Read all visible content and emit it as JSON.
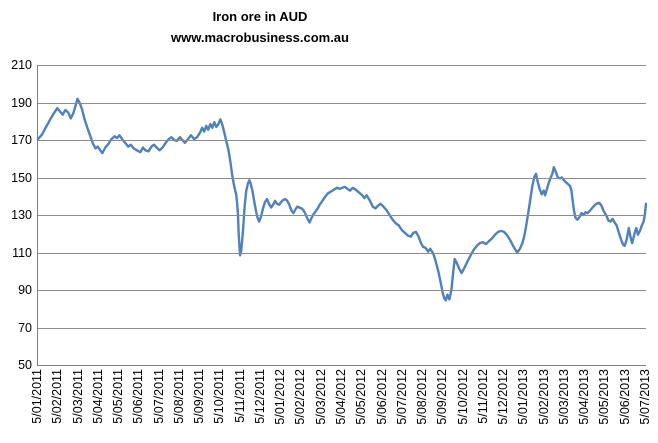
{
  "header": {
    "title": "Iron ore in AUD",
    "subtitle": "www.macrobusiness.com.au"
  },
  "colors": {
    "line": "#4F81BD",
    "gridline": "#8C8C8C",
    "axis": "#808080",
    "text": "#000000",
    "background": "#FFFFFF"
  },
  "chart_data": {
    "type": "line",
    "title": "Iron ore in AUD",
    "subtitle": "www.macrobusiness.com.au",
    "legend": "none",
    "grid": "horizontal",
    "ylim": [
      50,
      210
    ],
    "y_ticks": [
      210,
      190,
      170,
      150,
      130,
      110,
      90,
      70,
      50
    ],
    "x_axis_unit": "months since first tick (5/01/2011), monthly ticks",
    "x_tick_labels": [
      "5/01/2011",
      "5/02/2011",
      "5/03/2011",
      "5/04/2011",
      "5/05/2011",
      "5/06/2011",
      "5/07/2011",
      "5/08/2011",
      "5/09/2011",
      "5/10/2011",
      "5/11/2011",
      "5/12/2011",
      "5/01/2012",
      "5/02/2012",
      "5/03/2012",
      "5/04/2012",
      "5/05/2012",
      "5/06/2012",
      "5/07/2012",
      "5/08/2012",
      "5/09/2012",
      "5/10/2012",
      "5/11/2012",
      "5/12/2012",
      "5/01/2013",
      "5/02/2013",
      "5/03/2013",
      "5/04/2013",
      "5/05/2013",
      "5/06/2013",
      "5/07/2013"
    ],
    "series": [
      {
        "name": "Iron ore in AUD",
        "color": "#4F81BD",
        "points": [
          [
            0,
            170.5
          ],
          [
            0.2,
            173
          ],
          [
            0.4,
            177
          ],
          [
            0.6,
            181
          ],
          [
            0.8,
            184.5
          ],
          [
            0.95,
            187
          ],
          [
            1.1,
            185
          ],
          [
            1.22,
            183.5
          ],
          [
            1.35,
            186
          ],
          [
            1.5,
            184.5
          ],
          [
            1.62,
            181.5
          ],
          [
            1.75,
            184.5
          ],
          [
            1.87,
            189
          ],
          [
            1.95,
            192
          ],
          [
            2.05,
            190
          ],
          [
            2.17,
            186.5
          ],
          [
            2.3,
            181
          ],
          [
            2.45,
            176
          ],
          [
            2.6,
            171.5
          ],
          [
            2.72,
            168
          ],
          [
            2.83,
            165.5
          ],
          [
            2.95,
            166.5
          ],
          [
            3.07,
            164.5
          ],
          [
            3.18,
            163
          ],
          [
            3.32,
            166
          ],
          [
            3.48,
            168
          ],
          [
            3.62,
            170.5
          ],
          [
            3.78,
            172
          ],
          [
            3.9,
            171
          ],
          [
            4.02,
            172.5
          ],
          [
            4.15,
            170.5
          ],
          [
            4.3,
            168.5
          ],
          [
            4.45,
            166.5
          ],
          [
            4.58,
            167.5
          ],
          [
            4.72,
            165.5
          ],
          [
            4.88,
            164.5
          ],
          [
            5.05,
            163.5
          ],
          [
            5.18,
            166
          ],
          [
            5.3,
            164.5
          ],
          [
            5.45,
            164
          ],
          [
            5.6,
            166.5
          ],
          [
            5.72,
            167.5
          ],
          [
            5.85,
            166
          ],
          [
            6,
            164.5
          ],
          [
            6.15,
            166
          ],
          [
            6.3,
            168.5
          ],
          [
            6.45,
            170.5
          ],
          [
            6.58,
            171.5
          ],
          [
            6.72,
            170
          ],
          [
            6.85,
            169.5
          ],
          [
            7,
            171.5
          ],
          [
            7.12,
            170
          ],
          [
            7.25,
            168.5
          ],
          [
            7.4,
            170.5
          ],
          [
            7.55,
            172.5
          ],
          [
            7.7,
            170.5
          ],
          [
            7.85,
            171.5
          ],
          [
            8,
            174
          ],
          [
            8.1,
            176.5
          ],
          [
            8.2,
            174.5
          ],
          [
            8.3,
            177.5
          ],
          [
            8.4,
            175.5
          ],
          [
            8.5,
            178.5
          ],
          [
            8.6,
            176.5
          ],
          [
            8.7,
            179.5
          ],
          [
            8.8,
            177
          ],
          [
            8.9,
            178.5
          ],
          [
            9,
            181
          ],
          [
            9.1,
            178
          ],
          [
            9.2,
            173.5
          ],
          [
            9.3,
            169
          ],
          [
            9.4,
            164.5
          ],
          [
            9.5,
            158
          ],
          [
            9.57,
            152
          ],
          [
            9.65,
            147
          ],
          [
            9.72,
            143.5
          ],
          [
            9.78,
            141
          ],
          [
            9.83,
            136
          ],
          [
            9.87,
            130
          ],
          [
            9.9,
            121
          ],
          [
            9.94,
            113
          ],
          [
            9.97,
            108.5
          ],
          [
            10.02,
            110.5
          ],
          [
            10.07,
            116
          ],
          [
            10.13,
            124
          ],
          [
            10.2,
            135
          ],
          [
            10.28,
            143
          ],
          [
            10.36,
            147
          ],
          [
            10.43,
            148.5
          ],
          [
            10.5,
            146.5
          ],
          [
            10.58,
            143
          ],
          [
            10.66,
            138
          ],
          [
            10.74,
            133
          ],
          [
            10.82,
            129
          ],
          [
            10.91,
            126.5
          ],
          [
            11,
            129
          ],
          [
            11.1,
            133.5
          ],
          [
            11.2,
            137
          ],
          [
            11.3,
            138.5
          ],
          [
            11.4,
            136
          ],
          [
            11.5,
            134
          ],
          [
            11.6,
            135.5
          ],
          [
            11.7,
            137.5
          ],
          [
            11.8,
            136
          ],
          [
            11.9,
            135.5
          ],
          [
            12,
            137
          ],
          [
            12.1,
            138
          ],
          [
            12.2,
            138.5
          ],
          [
            12.3,
            137.5
          ],
          [
            12.4,
            135.5
          ],
          [
            12.5,
            132.5
          ],
          [
            12.6,
            131
          ],
          [
            12.7,
            133
          ],
          [
            12.8,
            134.5
          ],
          [
            12.9,
            134
          ],
          [
            13,
            133.5
          ],
          [
            13.1,
            132.5
          ],
          [
            13.2,
            130.5
          ],
          [
            13.3,
            128
          ],
          [
            13.4,
            126
          ],
          [
            13.5,
            128.5
          ],
          [
            13.6,
            130.5
          ],
          [
            13.7,
            132
          ],
          [
            13.8,
            133.5
          ],
          [
            13.9,
            135.5
          ],
          [
            14,
            137
          ],
          [
            14.15,
            139.5
          ],
          [
            14.3,
            141.5
          ],
          [
            14.45,
            142.5
          ],
          [
            14.6,
            143.5
          ],
          [
            14.75,
            144.5
          ],
          [
            14.9,
            144
          ],
          [
            15.02,
            144.5
          ],
          [
            15.14,
            145
          ],
          [
            15.27,
            144
          ],
          [
            15.4,
            143
          ],
          [
            15.53,
            144.5
          ],
          [
            15.68,
            143.5
          ],
          [
            15.84,
            142
          ],
          [
            16,
            140.5
          ],
          [
            16.1,
            139
          ],
          [
            16.22,
            140.5
          ],
          [
            16.38,
            137.5
          ],
          [
            16.52,
            134.5
          ],
          [
            16.65,
            133.5
          ],
          [
            16.78,
            135
          ],
          [
            16.9,
            136
          ],
          [
            17.05,
            134.5
          ],
          [
            17.2,
            132.5
          ],
          [
            17.35,
            130
          ],
          [
            17.5,
            127.5
          ],
          [
            17.65,
            125.5
          ],
          [
            17.8,
            124.5
          ],
          [
            17.95,
            122
          ],
          [
            18.1,
            120.5
          ],
          [
            18.25,
            119
          ],
          [
            18.4,
            118.5
          ],
          [
            18.52,
            120.5
          ],
          [
            18.65,
            121
          ],
          [
            18.78,
            118.5
          ],
          [
            18.9,
            115
          ],
          [
            19,
            113
          ],
          [
            19.12,
            112.5
          ],
          [
            19.25,
            110.5
          ],
          [
            19.35,
            112
          ],
          [
            19.5,
            109.5
          ],
          [
            19.62,
            105.5
          ],
          [
            19.75,
            100
          ],
          [
            19.87,
            94
          ],
          [
            19.97,
            88.5
          ],
          [
            20.05,
            85.5
          ],
          [
            20.12,
            84.5
          ],
          [
            20.2,
            87.5
          ],
          [
            20.3,
            85
          ],
          [
            20.4,
            90
          ],
          [
            20.48,
            99
          ],
          [
            20.56,
            106.5
          ],
          [
            20.66,
            104.5
          ],
          [
            20.78,
            101.5
          ],
          [
            20.9,
            99
          ],
          [
            21.05,
            102
          ],
          [
            21.2,
            105.5
          ],
          [
            21.35,
            108.5
          ],
          [
            21.5,
            111.5
          ],
          [
            21.65,
            113.5
          ],
          [
            21.8,
            115
          ],
          [
            21.95,
            115.5
          ],
          [
            22.1,
            114.5
          ],
          [
            22.25,
            116
          ],
          [
            22.4,
            117.5
          ],
          [
            22.55,
            119.5
          ],
          [
            22.7,
            121
          ],
          [
            22.85,
            121.5
          ],
          [
            23,
            121
          ],
          [
            23.12,
            119.5
          ],
          [
            23.25,
            117.5
          ],
          [
            23.4,
            114.5
          ],
          [
            23.55,
            111.5
          ],
          [
            23.65,
            110
          ],
          [
            23.78,
            112
          ],
          [
            23.9,
            115
          ],
          [
            24,
            119
          ],
          [
            24.1,
            125
          ],
          [
            24.2,
            132
          ],
          [
            24.3,
            139
          ],
          [
            24.4,
            146
          ],
          [
            24.5,
            150.5
          ],
          [
            24.57,
            152
          ],
          [
            24.65,
            148
          ],
          [
            24.75,
            144
          ],
          [
            24.85,
            141
          ],
          [
            24.95,
            143
          ],
          [
            25.02,
            140.5
          ],
          [
            25.1,
            143.5
          ],
          [
            25.2,
            147
          ],
          [
            25.3,
            150
          ],
          [
            25.38,
            152
          ],
          [
            25.45,
            155.5
          ],
          [
            25.55,
            153
          ],
          [
            25.65,
            150
          ],
          [
            25.75,
            149.5
          ],
          [
            25.85,
            150
          ],
          [
            25.95,
            148.5
          ],
          [
            26.05,
            147.5
          ],
          [
            26.15,
            146.5
          ],
          [
            26.25,
            145.5
          ],
          [
            26.32,
            143
          ],
          [
            26.38,
            138
          ],
          [
            26.45,
            132
          ],
          [
            26.52,
            128.5
          ],
          [
            26.62,
            127.5
          ],
          [
            26.72,
            129
          ],
          [
            26.82,
            131
          ],
          [
            26.92,
            130
          ],
          [
            27.02,
            131.5
          ],
          [
            27.12,
            131
          ],
          [
            27.25,
            132.5
          ],
          [
            27.4,
            134.5
          ],
          [
            27.55,
            136
          ],
          [
            27.7,
            136.5
          ],
          [
            27.8,
            135
          ],
          [
            27.92,
            132
          ],
          [
            28.05,
            129.5
          ],
          [
            28.15,
            127
          ],
          [
            28.25,
            126.5
          ],
          [
            28.35,
            128
          ],
          [
            28.45,
            126
          ],
          [
            28.55,
            124.5
          ],
          [
            28.68,
            120
          ],
          [
            28.78,
            116.5
          ],
          [
            28.88,
            114
          ],
          [
            28.95,
            113.5
          ],
          [
            29.05,
            117
          ],
          [
            29.15,
            123
          ],
          [
            29.25,
            117.5
          ],
          [
            29.32,
            115
          ],
          [
            29.45,
            121
          ],
          [
            29.52,
            123
          ],
          [
            29.6,
            119.5
          ],
          [
            29.7,
            121.5
          ],
          [
            29.8,
            124.5
          ],
          [
            29.88,
            126.5
          ],
          [
            29.94,
            130
          ],
          [
            30,
            136
          ]
        ]
      }
    ]
  }
}
